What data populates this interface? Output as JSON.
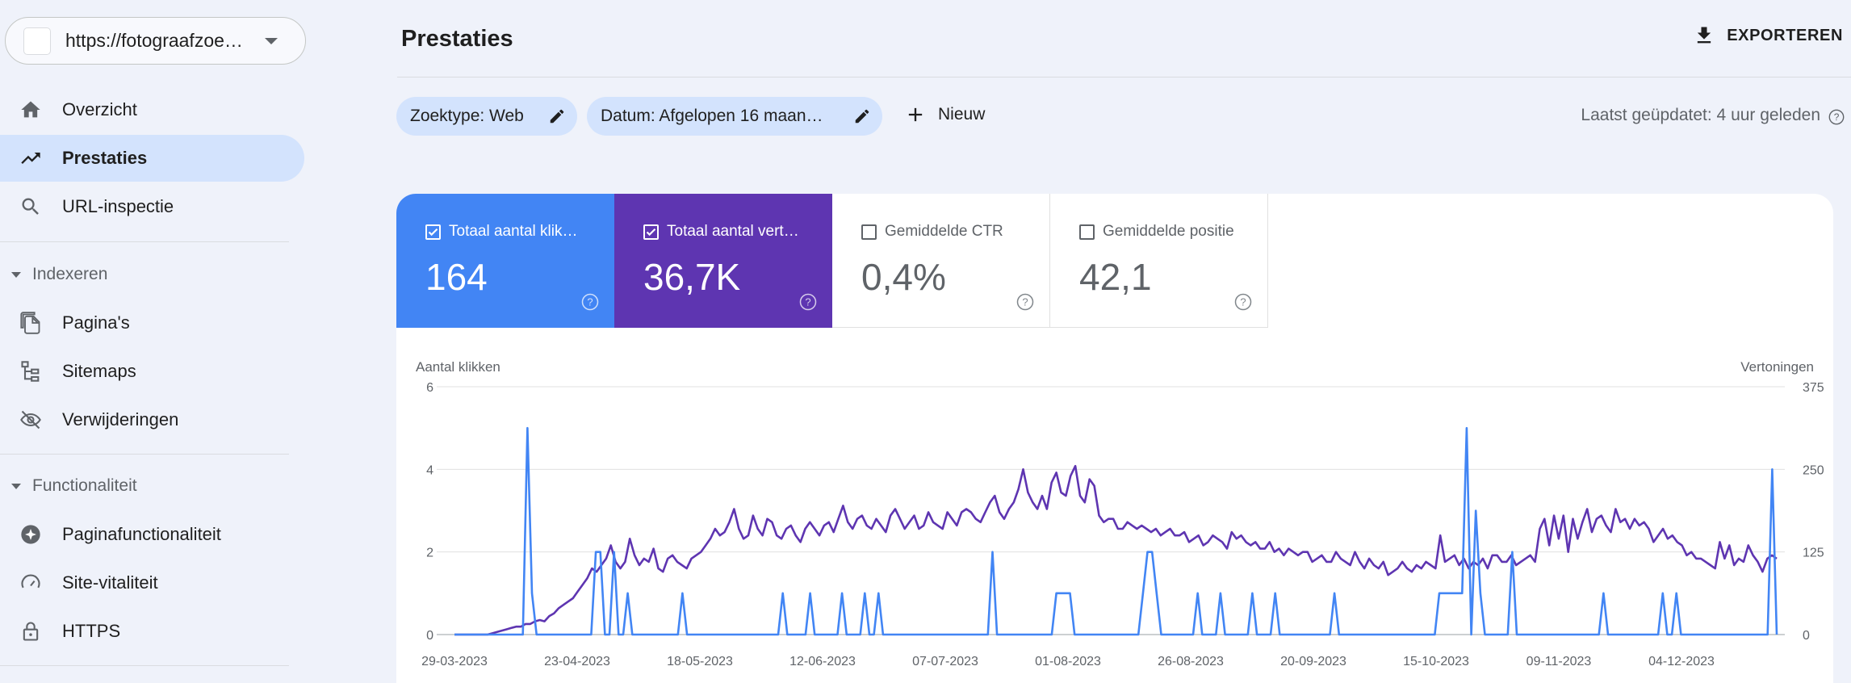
{
  "sidebar": {
    "property_url": "https://fotograafzoe…",
    "items_top": [
      {
        "label": "Overzicht",
        "icon": "home-icon"
      },
      {
        "label": "Prestaties",
        "icon": "trending-up-icon",
        "active": true
      },
      {
        "label": "URL-inspectie",
        "icon": "search-icon"
      }
    ],
    "section_indexeren": "Indexeren",
    "items_indexeren": [
      {
        "label": "Pagina's",
        "icon": "pages-icon"
      },
      {
        "label": "Sitemaps",
        "icon": "sitemap-icon"
      },
      {
        "label": "Verwijderingen",
        "icon": "eye-off-icon"
      }
    ],
    "section_functionaliteit": "Functionaliteit",
    "items_functionaliteit": [
      {
        "label": "Paginafunctionaliteit",
        "icon": "add-circle-icon"
      },
      {
        "label": "Site-vitaliteit",
        "icon": "speedometer-icon"
      },
      {
        "label": "HTTPS",
        "icon": "lock-icon"
      }
    ]
  },
  "header": {
    "title": "Prestaties",
    "export_label": "EXPORTEREN"
  },
  "filters": {
    "search_type": "Zoektype: Web",
    "date": "Datum: Afgelopen 16 maan…",
    "new_label": "Nieuw",
    "last_updated": "Laatst geüpdatet: 4 uur geleden"
  },
  "metrics": {
    "clicks": {
      "label": "Totaal aantal klik…",
      "value": "164",
      "checked": true,
      "color": "#4285f4"
    },
    "impressions": {
      "label": "Totaal aantal vert…",
      "value": "36,7K",
      "checked": true,
      "color": "#5e35b1"
    },
    "ctr": {
      "label": "Gemiddelde CTR",
      "value": "0,4%",
      "checked": false
    },
    "position": {
      "label": "Gemiddelde positie",
      "value": "42,1",
      "checked": false
    }
  },
  "chart_data": {
    "type": "line",
    "left_axis_label": "Aantal klikken",
    "right_axis_label": "Vertoningen",
    "left_ticks": [
      "6",
      "4",
      "2",
      "0"
    ],
    "right_ticks": [
      "375",
      "250",
      "125",
      "0"
    ],
    "ylim_left": [
      0,
      6
    ],
    "ylim_right": [
      0,
      375
    ],
    "x_tick_labels": [
      "29-03-2023",
      "23-04-2023",
      "18-05-2023",
      "12-06-2023",
      "07-07-2023",
      "01-08-2023",
      "26-08-2023",
      "20-09-2023",
      "15-10-2023",
      "09-11-2023",
      "04-12-2023"
    ],
    "grid": true,
    "series": [
      {
        "color": "#5e35b1",
        "values": [
          0,
          0,
          0,
          0,
          0,
          0,
          0,
          0,
          2,
          4,
          6,
          8,
          10,
          12,
          12,
          16,
          16,
          20,
          22,
          20,
          28,
          32,
          40,
          45,
          50,
          55,
          65,
          75,
          85,
          100,
          95,
          105,
          115,
          135,
          110,
          100,
          110,
          145,
          120,
          105,
          115,
          110,
          130,
          100,
          95,
          115,
          120,
          110,
          105,
          100,
          115,
          120,
          125,
          135,
          145,
          160,
          150,
          155,
          170,
          190,
          160,
          145,
          150,
          180,
          160,
          150,
          175,
          170,
          150,
          145,
          160,
          165,
          150,
          140,
          160,
          170,
          160,
          150,
          165,
          170,
          155,
          175,
          195,
          170,
          160,
          175,
          180,
          165,
          160,
          175,
          165,
          155,
          180,
          190,
          175,
          160,
          170,
          180,
          160,
          165,
          185,
          170,
          165,
          160,
          185,
          175,
          165,
          185,
          190,
          185,
          175,
          170,
          185,
          200,
          210,
          185,
          175,
          190,
          200,
          220,
          250,
          215,
          200,
          190,
          210,
          190,
          230,
          245,
          215,
          210,
          240,
          255,
          210,
          200,
          235,
          225,
          180,
          170,
          175,
          175,
          160,
          160,
          170,
          165,
          160,
          165,
          160,
          155,
          160,
          150,
          155,
          160,
          150,
          150,
          155,
          140,
          145,
          150,
          135,
          140,
          150,
          145,
          140,
          130,
          155,
          145,
          150,
          140,
          135,
          140,
          130,
          130,
          140,
          125,
          130,
          120,
          130,
          125,
          120,
          125,
          125,
          110,
          115,
          120,
          110,
          110,
          125,
          115,
          110,
          105,
          125,
          110,
          100,
          115,
          105,
          100,
          110,
          90,
          95,
          100,
          110,
          100,
          95,
          105,
          100,
          110,
          105,
          100,
          150,
          110,
          115,
          120,
          105,
          115,
          100,
          110,
          105,
          115,
          100,
          120,
          120,
          110,
          110,
          120,
          105,
          110,
          115,
          120,
          110,
          160,
          175,
          135,
          180,
          145,
          180,
          125,
          175,
          145,
          170,
          190,
          155,
          175,
          180,
          165,
          155,
          190,
          170,
          175,
          160,
          175,
          165,
          170,
          160,
          140,
          150,
          160,
          145,
          150,
          140,
          135,
          120,
          125,
          115,
          115,
          110,
          105,
          100,
          140,
          115,
          135,
          105,
          115,
          110,
          135,
          120,
          110,
          95,
          115,
          120,
          115
        ],
        "note": "impressions, right axis"
      },
      {
        "color": "#4285f4",
        "values": [
          0,
          0,
          0,
          0,
          0,
          0,
          0,
          0,
          0,
          0,
          0,
          0,
          0,
          0,
          0,
          0,
          5,
          1,
          0,
          0,
          0,
          0,
          0,
          0,
          0,
          0,
          0,
          0,
          0,
          0,
          0,
          2,
          2,
          0,
          0,
          2,
          0,
          0,
          1,
          0,
          0,
          0,
          0,
          0,
          0,
          0,
          0,
          0,
          0,
          0,
          1,
          0,
          0,
          0,
          0,
          0,
          0,
          0,
          0,
          0,
          0,
          0,
          0,
          0,
          0,
          0,
          0,
          0,
          0,
          0,
          0,
          0,
          1,
          0,
          0,
          0,
          0,
          0,
          1,
          0,
          0,
          0,
          0,
          0,
          0,
          1,
          0,
          0,
          0,
          0,
          1,
          0,
          0,
          1,
          0,
          0,
          0,
          0,
          0,
          0,
          0,
          0,
          0,
          0,
          0,
          0,
          0,
          0,
          0,
          0,
          0,
          0,
          0,
          0,
          0,
          0,
          0,
          0,
          2,
          0,
          0,
          0,
          0,
          0,
          0,
          0,
          0,
          0,
          0,
          0,
          0,
          0,
          1,
          1,
          1,
          1,
          0,
          0,
          0,
          0,
          0,
          0,
          0,
          0,
          0,
          0,
          0,
          0,
          0,
          0,
          0,
          1,
          2,
          2,
          1,
          0,
          0,
          0,
          0,
          0,
          0,
          0,
          0,
          1,
          0,
          0,
          0,
          0,
          1,
          0,
          0,
          0,
          0,
          0,
          0,
          1,
          0,
          0,
          0,
          0,
          1,
          0,
          0,
          0,
          0,
          0,
          0,
          0,
          0,
          0,
          0,
          0,
          0,
          1,
          0,
          0,
          0,
          0,
          0,
          0,
          0,
          0,
          0,
          0,
          0,
          0,
          0,
          0,
          0,
          0,
          0,
          0,
          0,
          0,
          0,
          0,
          1,
          1,
          1,
          1,
          1,
          1,
          5,
          0,
          3,
          1,
          0,
          0,
          0,
          0,
          0,
          0,
          2,
          0,
          0,
          0,
          0,
          0,
          0,
          0,
          0,
          0,
          0,
          0,
          0,
          0,
          0,
          0,
          0,
          0,
          0,
          0,
          1,
          0,
          0,
          0,
          0,
          0,
          0,
          0,
          0,
          0,
          0,
          0,
          0,
          1,
          0,
          0,
          1,
          0,
          0,
          0,
          0,
          0,
          0,
          0,
          0,
          0,
          0,
          0,
          0,
          0,
          0,
          0,
          0,
          0,
          0,
          0,
          0,
          4,
          0
        ],
        "note": "clicks, left axis"
      }
    ]
  }
}
